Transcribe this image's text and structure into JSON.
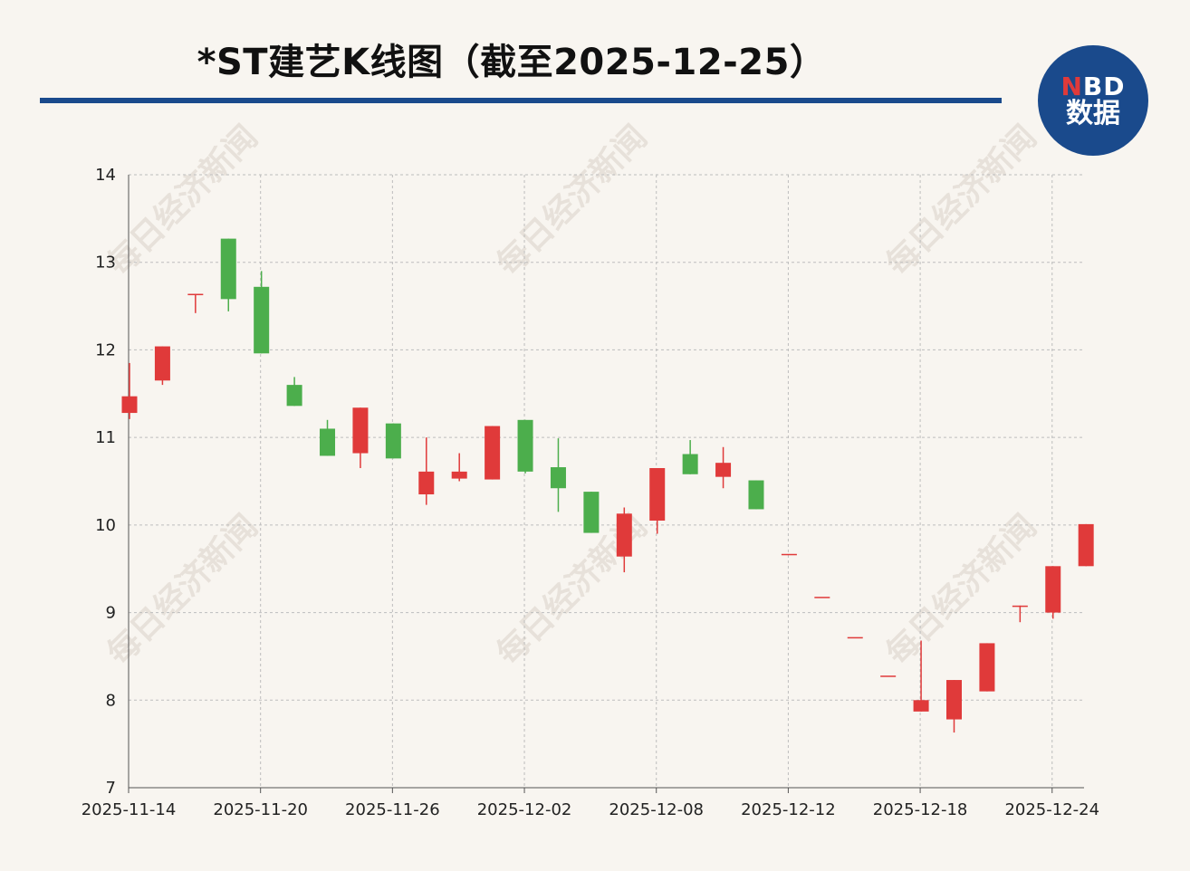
{
  "title": "*ST建艺K线图（截至2025-12-25）",
  "logo": {
    "line1_n": "N",
    "line1_rest": "BD",
    "line2": "数据"
  },
  "watermark": "每日经济新闻",
  "colors": {
    "up": "#e03a3a",
    "down": "#4cae4c",
    "accent": "#1a4a8c"
  },
  "chart_data": {
    "type": "candlestick",
    "ylim": [
      7,
      14
    ],
    "yticks": [
      7,
      8,
      9,
      10,
      11,
      12,
      13,
      14
    ],
    "xticks": [
      "2025-11-14",
      "2025-11-20",
      "2025-11-26",
      "2025-12-02",
      "2025-12-08",
      "2025-12-12",
      "2025-12-18",
      "2025-12-24"
    ],
    "grid": true,
    "candles": [
      {
        "open": 11.28,
        "close": 11.47,
        "high": 11.85,
        "low": 11.21
      },
      {
        "open": 11.65,
        "close": 12.04,
        "high": 12.04,
        "low": 11.6
      },
      {
        "open": 12.64,
        "close": 12.64,
        "high": 12.64,
        "low": 12.42
      },
      {
        "open": 13.27,
        "close": 12.58,
        "high": 13.27,
        "low": 12.44
      },
      {
        "open": 12.72,
        "close": 11.96,
        "high": 12.9,
        "low": 11.96
      },
      {
        "open": 11.6,
        "close": 11.36,
        "high": 11.69,
        "low": 11.36
      },
      {
        "open": 11.1,
        "close": 10.79,
        "high": 11.2,
        "low": 10.79
      },
      {
        "open": 10.82,
        "close": 11.34,
        "high": 11.34,
        "low": 10.65
      },
      {
        "open": 11.16,
        "close": 10.76,
        "high": 11.16,
        "low": 10.76
      },
      {
        "open": 10.35,
        "close": 10.61,
        "high": 11.0,
        "low": 10.23
      },
      {
        "open": 10.53,
        "close": 10.61,
        "high": 10.82,
        "low": 10.5
      },
      {
        "open": 10.52,
        "close": 11.13,
        "high": 11.13,
        "low": 10.52
      },
      {
        "open": 11.2,
        "close": 10.61,
        "high": 11.2,
        "low": 10.59
      },
      {
        "open": 10.66,
        "close": 10.42,
        "high": 10.99,
        "low": 10.15
      },
      {
        "open": 10.38,
        "close": 9.91,
        "high": 10.38,
        "low": 9.91
      },
      {
        "open": 9.64,
        "close": 10.13,
        "high": 10.2,
        "low": 9.46
      },
      {
        "open": 10.05,
        "close": 10.65,
        "high": 10.65,
        "low": 9.9
      },
      {
        "open": 10.81,
        "close": 10.58,
        "high": 10.97,
        "low": 10.58
      },
      {
        "open": 10.55,
        "close": 10.71,
        "high": 10.89,
        "low": 10.42
      },
      {
        "open": 10.51,
        "close": 10.18,
        "high": 10.51,
        "low": 10.18
      },
      {
        "open": 9.67,
        "close": 9.67,
        "high": 9.67,
        "low": 9.67
      },
      {
        "open": 9.18,
        "close": 9.18,
        "high": 9.18,
        "low": 9.18
      },
      {
        "open": 8.72,
        "close": 8.72,
        "high": 8.72,
        "low": 8.72
      },
      {
        "open": 8.28,
        "close": 8.28,
        "high": 8.28,
        "low": 8.28
      },
      {
        "open": 7.87,
        "close": 8.0,
        "high": 8.68,
        "low": 7.87
      },
      {
        "open": 7.78,
        "close": 8.23,
        "high": 8.23,
        "low": 7.63
      },
      {
        "open": 8.1,
        "close": 8.65,
        "high": 8.65,
        "low": 8.1
      },
      {
        "open": 9.08,
        "close": 9.08,
        "high": 9.08,
        "low": 8.89
      },
      {
        "open": 9.0,
        "close": 9.53,
        "high": 9.53,
        "low": 8.93
      },
      {
        "open": 9.53,
        "close": 10.01,
        "high": 10.01,
        "low": 9.53
      }
    ]
  }
}
